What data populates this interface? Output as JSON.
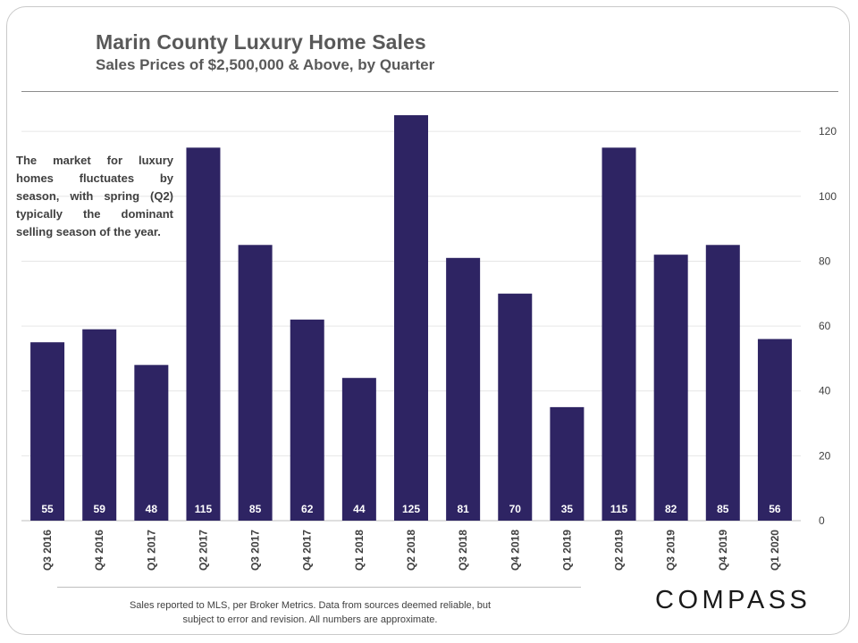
{
  "colors": {
    "bar": "#2e2463",
    "text": "#595959"
  },
  "annotation": "The market for luxury homes fluctuates by season, with spring (Q2) typically the dominant selling season of the year.",
  "footnote": {
    "line1": "Sales reported to MLS, per Broker Metrics. Data from sources deemed reliable, but",
    "line2": "subject to error and revision. All numbers are approximate."
  },
  "logo": "COMPASS",
  "chart_data": {
    "type": "bar",
    "title": "Marin County Luxury Home Sales",
    "subtitle": "Sales Prices of $2,500,000 & Above, by Quarter",
    "categories": [
      "Q3 2016",
      "Q4 2016",
      "Q1 2017",
      "Q2 2017",
      "Q3 2017",
      "Q4 2017",
      "Q1 2018",
      "Q2 2018",
      "Q3 2018",
      "Q4 2018",
      "Q1 2019",
      "Q2 2019",
      "Q3 2019",
      "Q4 2019",
      "Q1 2020"
    ],
    "values": [
      55,
      59,
      48,
      115,
      85,
      62,
      44,
      125,
      81,
      70,
      35,
      115,
      82,
      85,
      56
    ],
    "yticks": [
      0,
      20,
      40,
      60,
      80,
      100,
      120
    ],
    "ylim": [
      0,
      125
    ],
    "ylabel": "",
    "xlabel": "",
    "y_axis_side": "right",
    "grid": true,
    "data_labels": true
  }
}
